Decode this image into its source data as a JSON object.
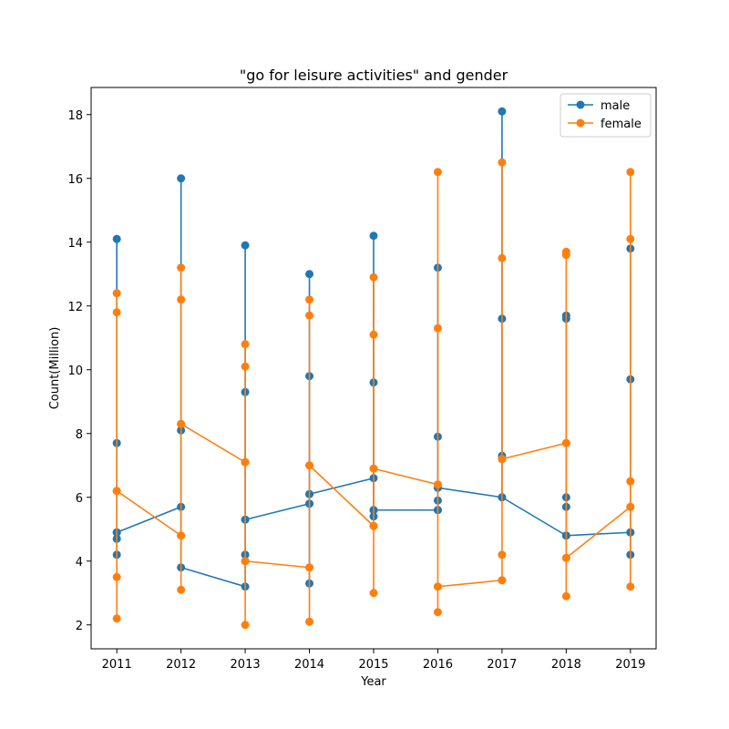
{
  "chart_data": {
    "type": "line",
    "title": "\"go for leisure activities\" and gender",
    "xlabel": "Year",
    "ylabel": "Count(Million)",
    "x_ticks": [
      "2011",
      "2012",
      "2013",
      "2014",
      "2015",
      "2016",
      "2017",
      "2018",
      "2019"
    ],
    "y_ticks": [
      "2",
      "4",
      "6",
      "8",
      "10",
      "12",
      "14",
      "16",
      "18"
    ],
    "xlim": [
      2010.6,
      2019.4
    ],
    "ylim": [
      1.25,
      18.85
    ],
    "grid": false,
    "legend_position": "top-right",
    "series": [
      {
        "name": "male",
        "color": "#1f77b4",
        "points": [
          [
            2011,
            14.1
          ],
          [
            2011,
            7.7
          ],
          [
            2011,
            4.9
          ],
          [
            2011,
            4.7
          ],
          [
            2011,
            4.2
          ],
          [
            2011,
            4.9
          ],
          [
            2012,
            5.7
          ],
          [
            2012,
            16.0
          ],
          [
            2012,
            8.1
          ],
          [
            2012,
            3.8
          ],
          [
            2013,
            3.2
          ],
          [
            2013,
            13.9
          ],
          [
            2013,
            9.3
          ],
          [
            2013,
            5.3
          ],
          [
            2013,
            4.2
          ],
          [
            2013,
            5.3
          ],
          [
            2014,
            5.8
          ],
          [
            2014,
            13.0
          ],
          [
            2014,
            9.8
          ],
          [
            2014,
            6.1
          ],
          [
            2014,
            5.8
          ],
          [
            2014,
            3.3
          ],
          [
            2014,
            6.1
          ],
          [
            2015,
            6.6
          ],
          [
            2015,
            14.2
          ],
          [
            2015,
            9.6
          ],
          [
            2015,
            5.6
          ],
          [
            2015,
            5.4
          ],
          [
            2015,
            5.6
          ],
          [
            2016,
            5.6
          ],
          [
            2016,
            13.2
          ],
          [
            2016,
            7.9
          ],
          [
            2016,
            6.3
          ],
          [
            2016,
            5.9
          ],
          [
            2016,
            5.6
          ],
          [
            2016,
            6.3
          ],
          [
            2017,
            6.0
          ],
          [
            2017,
            18.1
          ],
          [
            2017,
            11.6
          ],
          [
            2017,
            7.3
          ],
          [
            2017,
            6.0
          ],
          [
            2018,
            4.8
          ],
          [
            2018,
            11.7
          ],
          [
            2018,
            11.6
          ],
          [
            2018,
            6.0
          ],
          [
            2018,
            5.7
          ],
          [
            2018,
            4.8
          ],
          [
            2019,
            4.9
          ],
          [
            2019,
            13.8
          ],
          [
            2019,
            9.7
          ],
          [
            2019,
            4.9
          ],
          [
            2019,
            4.2
          ]
        ]
      },
      {
        "name": "female",
        "color": "#ff7f0e",
        "points": [
          [
            2011,
            12.4
          ],
          [
            2011,
            11.8
          ],
          [
            2011,
            6.2
          ],
          [
            2011,
            3.5
          ],
          [
            2011,
            2.2
          ],
          [
            2011,
            6.2
          ],
          [
            2012,
            4.8
          ],
          [
            2012,
            13.2
          ],
          [
            2012,
            12.2
          ],
          [
            2012,
            8.3
          ],
          [
            2012,
            4.8
          ],
          [
            2012,
            3.1
          ],
          [
            2012,
            8.3
          ],
          [
            2013,
            7.1
          ],
          [
            2013,
            10.8
          ],
          [
            2013,
            10.1
          ],
          [
            2013,
            7.1
          ],
          [
            2013,
            4.0
          ],
          [
            2013,
            2.0
          ],
          [
            2013,
            4.0
          ],
          [
            2014,
            3.8
          ],
          [
            2014,
            12.2
          ],
          [
            2014,
            11.7
          ],
          [
            2014,
            7.0
          ],
          [
            2014,
            3.8
          ],
          [
            2014,
            2.1
          ],
          [
            2014,
            7.0
          ],
          [
            2015,
            5.1
          ],
          [
            2015,
            12.9
          ],
          [
            2015,
            11.1
          ],
          [
            2015,
            6.9
          ],
          [
            2015,
            5.1
          ],
          [
            2015,
            3.0
          ],
          [
            2015,
            6.9
          ],
          [
            2016,
            6.4
          ],
          [
            2016,
            16.2
          ],
          [
            2016,
            11.3
          ],
          [
            2016,
            6.4
          ],
          [
            2016,
            3.2
          ],
          [
            2016,
            2.4
          ],
          [
            2016,
            3.2
          ],
          [
            2017,
            3.4
          ],
          [
            2017,
            16.5
          ],
          [
            2017,
            13.5
          ],
          [
            2017,
            7.2
          ],
          [
            2017,
            4.2
          ],
          [
            2017,
            3.4
          ],
          [
            2017,
            7.2
          ],
          [
            2018,
            7.7
          ],
          [
            2018,
            13.7
          ],
          [
            2018,
            13.6
          ],
          [
            2018,
            7.7
          ],
          [
            2018,
            4.1
          ],
          [
            2018,
            2.9
          ],
          [
            2018,
            4.1
          ],
          [
            2019,
            5.7
          ],
          [
            2019,
            16.2
          ],
          [
            2019,
            14.1
          ],
          [
            2019,
            6.5
          ],
          [
            2019,
            5.7
          ],
          [
            2019,
            3.2
          ],
          [
            2019,
            6.5
          ]
        ]
      }
    ]
  }
}
